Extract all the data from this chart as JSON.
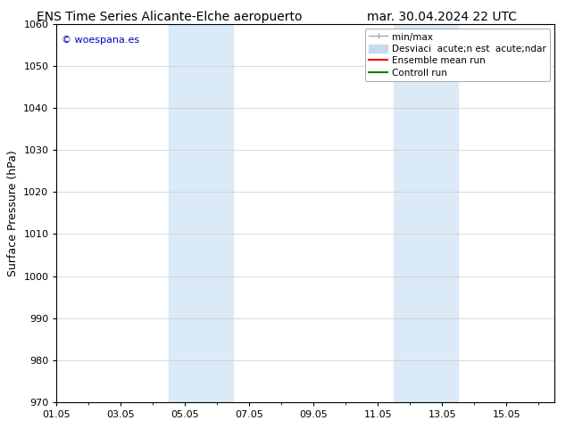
{
  "title_left": "ENS Time Series Alicante-Elche aeropuerto",
  "title_right": "mar. 30.04.2024 22 UTC",
  "ylabel": "Surface Pressure (hPa)",
  "xlim_start": 0,
  "xlim_end": 15.5,
  "ylim_bottom": 970,
  "ylim_top": 1060,
  "yticks": [
    970,
    980,
    990,
    1000,
    1010,
    1020,
    1030,
    1040,
    1050,
    1060
  ],
  "xtick_labels": [
    "01.05",
    "03.05",
    "05.05",
    "07.05",
    "09.05",
    "11.05",
    "13.05",
    "15.05"
  ],
  "xtick_positions": [
    0,
    2,
    4,
    6,
    8,
    10,
    12,
    14
  ],
  "shaded_regions": [
    {
      "xmin": 3.5,
      "xmax": 5.5,
      "color": "#daeaf7"
    },
    {
      "xmin": 10.5,
      "xmax": 12.5,
      "color": "#daeaf7"
    }
  ],
  "watermark_text": "© woespana.es",
  "watermark_color": "#0000bb",
  "legend_labels": [
    "min/max",
    "Desviaci  acute;n est  acute;ndar",
    "Ensemble mean run",
    "Controll run"
  ],
  "legend_colors": [
    "#aaaaaa",
    "#c5dcf0",
    "#ff0000",
    "#008000"
  ],
  "bg_color": "#ffffff",
  "plot_bg_color": "#ffffff",
  "grid_color": "#cccccc",
  "title_fontsize": 10,
  "ylabel_fontsize": 9,
  "tick_fontsize": 8,
  "legend_fontsize": 7.5,
  "watermark_fontsize": 8
}
